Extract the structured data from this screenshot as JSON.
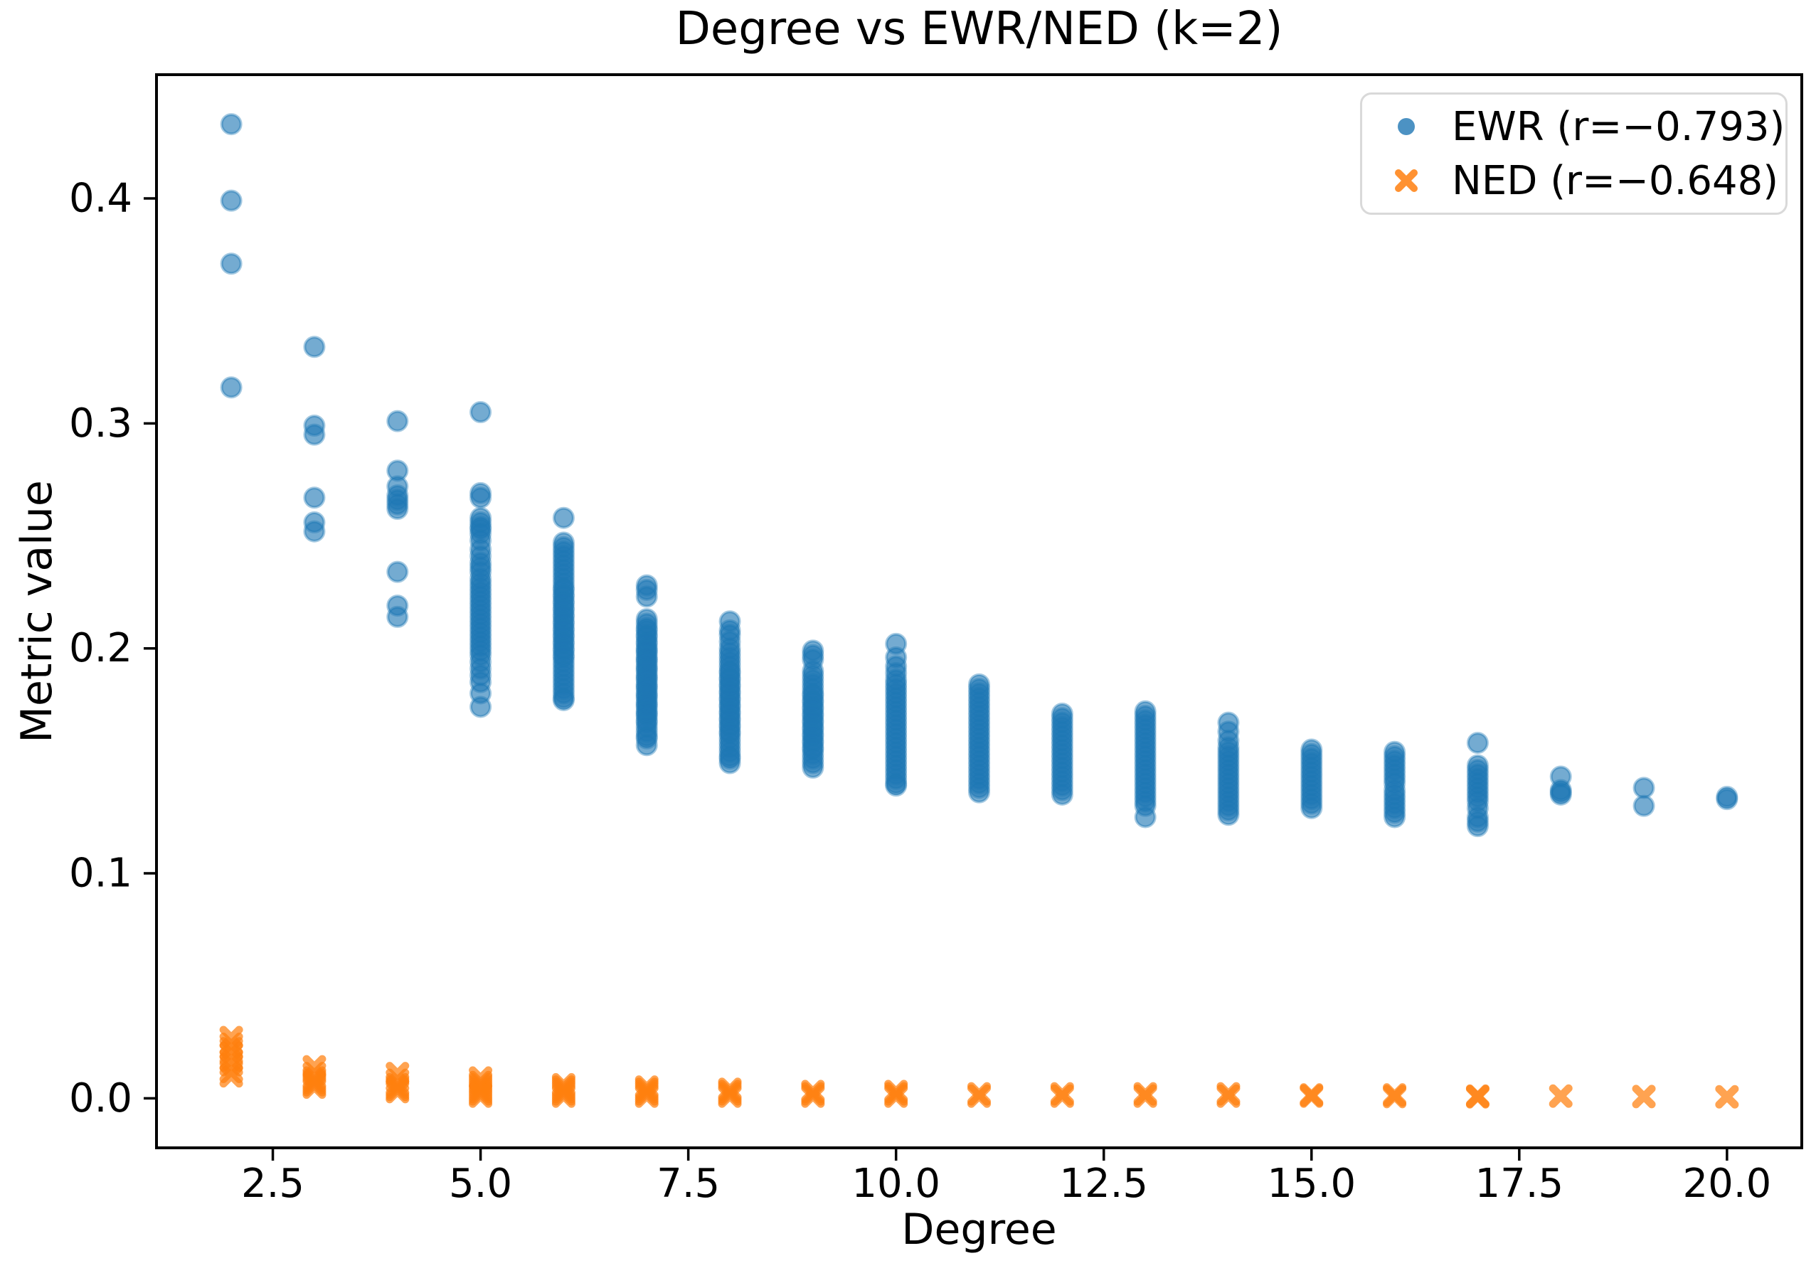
{
  "figure": {
    "title": "Degree vs EWR/NED (k=2)",
    "xlabel": "Degree",
    "ylabel": "Metric value"
  },
  "legend": {
    "position": "upper right",
    "items": [
      {
        "label": "EWR (r=−0.793)",
        "marker": "circle",
        "color": "#1f77b4"
      },
      {
        "label": "NED (r=−0.648)",
        "marker": "X",
        "color": "#ff7f0e"
      }
    ]
  },
  "chart_data": {
    "type": "scatter",
    "title": "Degree vs EWR/NED (k=2)",
    "xlabel": "Degree",
    "ylabel": "Metric value",
    "xlim": [
      1.1,
      20.9
    ],
    "ylim": [
      -0.022,
      0.455
    ],
    "grid": false,
    "legend_position": "upper right",
    "x_ticks": {
      "values": [
        2.5,
        5.0,
        7.5,
        10.0,
        12.5,
        15.0,
        17.5,
        20.0
      ],
      "labels": [
        "2.5",
        "5.0",
        "7.5",
        "10.0",
        "12.5",
        "15.0",
        "17.5",
        "20.0"
      ]
    },
    "y_ticks": {
      "values": [
        0.0,
        0.1,
        0.2,
        0.3,
        0.4
      ],
      "labels": [
        "0.0",
        "0.1",
        "0.2",
        "0.3",
        "0.4"
      ]
    },
    "series": [
      {
        "name": "EWR (r=−0.793)",
        "marker": "circle",
        "color": "#1f77b4",
        "alpha": 0.62,
        "points_by_degree": {
          "2": [
            0.433,
            0.399,
            0.371,
            0.316
          ],
          "3": [
            0.334,
            0.299,
            0.295,
            0.267,
            0.256,
            0.252
          ],
          "4": [
            0.301,
            0.279,
            0.272,
            0.268,
            0.266,
            0.264,
            0.262,
            0.234,
            0.219,
            0.214
          ],
          "5": [
            0.305,
            0.269,
            0.267,
            0.258,
            0.256,
            0.254,
            0.253,
            0.251,
            0.248,
            0.244,
            0.241,
            0.238,
            0.236,
            0.234,
            0.231,
            0.229,
            0.227,
            0.225,
            0.223,
            0.221,
            0.219,
            0.217,
            0.215,
            0.213,
            0.211,
            0.209,
            0.207,
            0.205,
            0.203,
            0.201,
            0.199,
            0.197,
            0.194,
            0.191,
            0.188,
            0.185,
            0.18,
            0.174
          ],
          "6": [
            0.258,
            0.247,
            0.245,
            0.243,
            0.241,
            0.239,
            0.237,
            0.235,
            0.233,
            0.231,
            0.229,
            0.227,
            0.226,
            0.224,
            0.223,
            0.221,
            0.22,
            0.218,
            0.217,
            0.215,
            0.214,
            0.212,
            0.211,
            0.209,
            0.208,
            0.206,
            0.205,
            0.203,
            0.202,
            0.2,
            0.199,
            0.197,
            0.196,
            0.194,
            0.192,
            0.19,
            0.188,
            0.186,
            0.184,
            0.182,
            0.18,
            0.178,
            0.177
          ],
          "7": [
            0.228,
            0.226,
            0.223,
            0.213,
            0.211,
            0.209,
            0.208,
            0.206,
            0.205,
            0.203,
            0.202,
            0.2,
            0.199,
            0.198,
            0.196,
            0.195,
            0.194,
            0.192,
            0.191,
            0.19,
            0.188,
            0.187,
            0.186,
            0.184,
            0.183,
            0.182,
            0.18,
            0.179,
            0.178,
            0.176,
            0.175,
            0.174,
            0.172,
            0.171,
            0.17,
            0.168,
            0.167,
            0.165,
            0.163,
            0.161,
            0.16,
            0.157
          ],
          "8": [
            0.212,
            0.208,
            0.206,
            0.203,
            0.2,
            0.198,
            0.196,
            0.194,
            0.192,
            0.19,
            0.189,
            0.187,
            0.186,
            0.184,
            0.183,
            0.181,
            0.18,
            0.178,
            0.177,
            0.175,
            0.174,
            0.172,
            0.171,
            0.169,
            0.168,
            0.166,
            0.165,
            0.163,
            0.162,
            0.16,
            0.158,
            0.156,
            0.154,
            0.152,
            0.151,
            0.149
          ],
          "9": [
            0.199,
            0.197,
            0.195,
            0.19,
            0.188,
            0.186,
            0.184,
            0.182,
            0.18,
            0.179,
            0.177,
            0.176,
            0.174,
            0.173,
            0.171,
            0.17,
            0.168,
            0.167,
            0.165,
            0.164,
            0.162,
            0.161,
            0.159,
            0.158,
            0.156,
            0.155,
            0.153,
            0.151,
            0.149,
            0.147
          ],
          "10": [
            0.202,
            0.196,
            0.192,
            0.189,
            0.186,
            0.184,
            0.182,
            0.18,
            0.178,
            0.176,
            0.174,
            0.172,
            0.17,
            0.168,
            0.166,
            0.164,
            0.162,
            0.16,
            0.158,
            0.156,
            0.154,
            0.152,
            0.15,
            0.148,
            0.146,
            0.144,
            0.142,
            0.14,
            0.139
          ],
          "11": [
            0.184,
            0.182,
            0.18,
            0.178,
            0.176,
            0.174,
            0.172,
            0.17,
            0.168,
            0.166,
            0.164,
            0.162,
            0.16,
            0.158,
            0.156,
            0.154,
            0.152,
            0.15,
            0.148,
            0.146,
            0.144,
            0.142,
            0.14,
            0.138,
            0.136
          ],
          "12": [
            0.171,
            0.169,
            0.167,
            0.165,
            0.163,
            0.161,
            0.159,
            0.157,
            0.155,
            0.153,
            0.151,
            0.149,
            0.147,
            0.145,
            0.143,
            0.141,
            0.139,
            0.137,
            0.135
          ],
          "13": [
            0.172,
            0.17,
            0.168,
            0.166,
            0.164,
            0.162,
            0.16,
            0.158,
            0.156,
            0.154,
            0.152,
            0.15,
            0.148,
            0.146,
            0.144,
            0.142,
            0.14,
            0.138,
            0.136,
            0.134,
            0.132,
            0.13,
            0.125
          ],
          "14": [
            0.167,
            0.163,
            0.159,
            0.156,
            0.154,
            0.152,
            0.15,
            0.148,
            0.146,
            0.144,
            0.142,
            0.14,
            0.138,
            0.136,
            0.134,
            0.132,
            0.13,
            0.128,
            0.126
          ],
          "15": [
            0.155,
            0.153,
            0.151,
            0.149,
            0.147,
            0.145,
            0.143,
            0.141,
            0.139,
            0.137,
            0.135,
            0.133,
            0.131,
            0.129
          ],
          "16": [
            0.154,
            0.152,
            0.15,
            0.148,
            0.146,
            0.144,
            0.142,
            0.14,
            0.137,
            0.135,
            0.133,
            0.131,
            0.129,
            0.127,
            0.125
          ],
          "17": [
            0.158,
            0.148,
            0.146,
            0.144,
            0.142,
            0.14,
            0.138,
            0.136,
            0.134,
            0.132,
            0.129,
            0.125,
            0.123,
            0.121
          ],
          "18": [
            0.143,
            0.137,
            0.136,
            0.135
          ],
          "19": [
            0.138,
            0.13
          ],
          "20": [
            0.134,
            0.133
          ]
        }
      },
      {
        "name": "NED (r=−0.648)",
        "marker": "X",
        "color": "#ff7f0e",
        "alpha": 0.72,
        "points_by_degree": {
          "2": [
            0.027,
            0.024,
            0.022,
            0.02,
            0.017,
            0.015,
            0.012,
            0.01
          ],
          "3": [
            0.014,
            0.011,
            0.009,
            0.008,
            0.007,
            0.006,
            0.005
          ],
          "4": [
            0.011,
            0.008,
            0.006,
            0.005,
            0.004,
            0.003
          ],
          "5": [
            0.009,
            0.007,
            0.006,
            0.005,
            0.004,
            0.003,
            0.002,
            0.001
          ],
          "6": [
            0.006,
            0.005,
            0.004,
            0.003,
            0.002,
            0.001
          ],
          "7": [
            0.005,
            0.004,
            0.003,
            0.002,
            0.001
          ],
          "8": [
            0.004,
            0.003,
            0.002,
            0.001
          ],
          "9": [
            0.003,
            0.002,
            0.001
          ],
          "10": [
            0.003,
            0.002,
            0.001
          ],
          "11": [
            0.002,
            0.001
          ],
          "12": [
            0.002,
            0.001
          ],
          "13": [
            0.002,
            0.001
          ],
          "14": [
            0.002,
            0.001
          ],
          "15": [
            0.0015,
            0.001
          ],
          "16": [
            0.0015,
            0.0008
          ],
          "17": [
            0.001,
            0.0007
          ],
          "18": [
            0.001
          ],
          "19": [
            0.0008
          ],
          "20": [
            0.0007
          ]
        }
      }
    ]
  }
}
